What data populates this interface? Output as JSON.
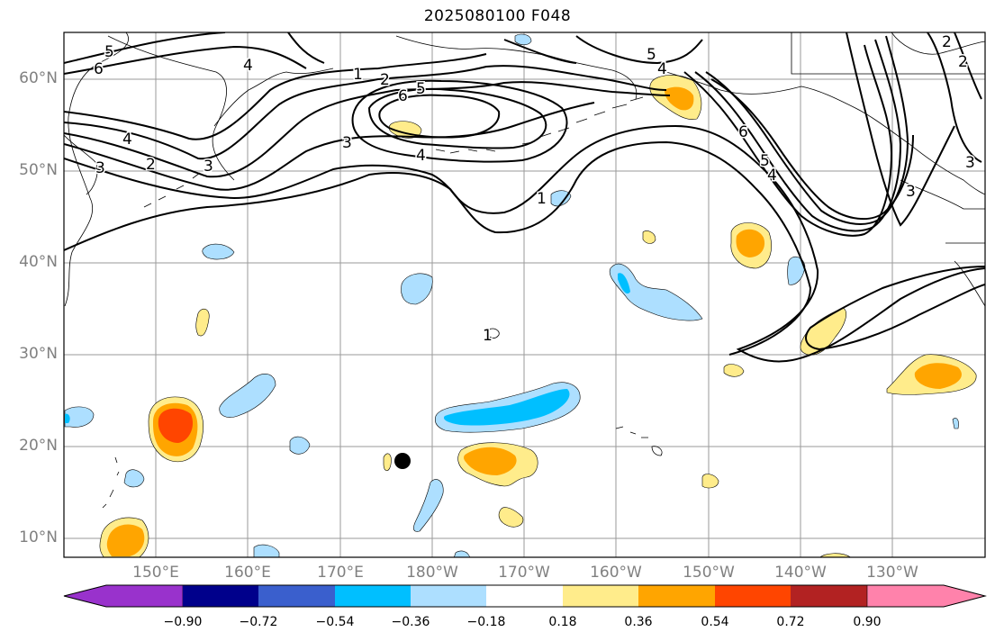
{
  "title": "2025080100 F048",
  "lat_labels": [
    "60°N",
    "50°N",
    "40°N",
    "30°N",
    "20°N",
    "10°N"
  ],
  "lon_labels": [
    "150°E",
    "160°E",
    "170°E",
    "180°W",
    "170°W",
    "160°W",
    "150°W",
    "140°W",
    "130°W"
  ],
  "contour_labels": [
    "5",
    "6",
    "4",
    "1",
    "2",
    "6",
    "5",
    "3",
    "4",
    "1",
    "2",
    "4",
    "3",
    "3",
    "1",
    "4",
    "5",
    "6",
    "5",
    "4",
    "3",
    "2",
    "2",
    "3"
  ],
  "colorbar": {
    "ticks": [
      "−0.90",
      "−0.72",
      "−0.54",
      "−0.36",
      "−0.18",
      "0.18",
      "0.36",
      "0.54",
      "0.72",
      "0.90"
    ],
    "colors": [
      "#9932CC",
      "#00008B",
      "#3A5FCD",
      "#00BFFF",
      "#ADDFFF",
      "#FFFFFF",
      "#FFEC8B",
      "#FFA500",
      "#FF4500",
      "#B22222",
      "#FF82AB"
    ]
  },
  "marker": {
    "type": "black-dot"
  }
}
